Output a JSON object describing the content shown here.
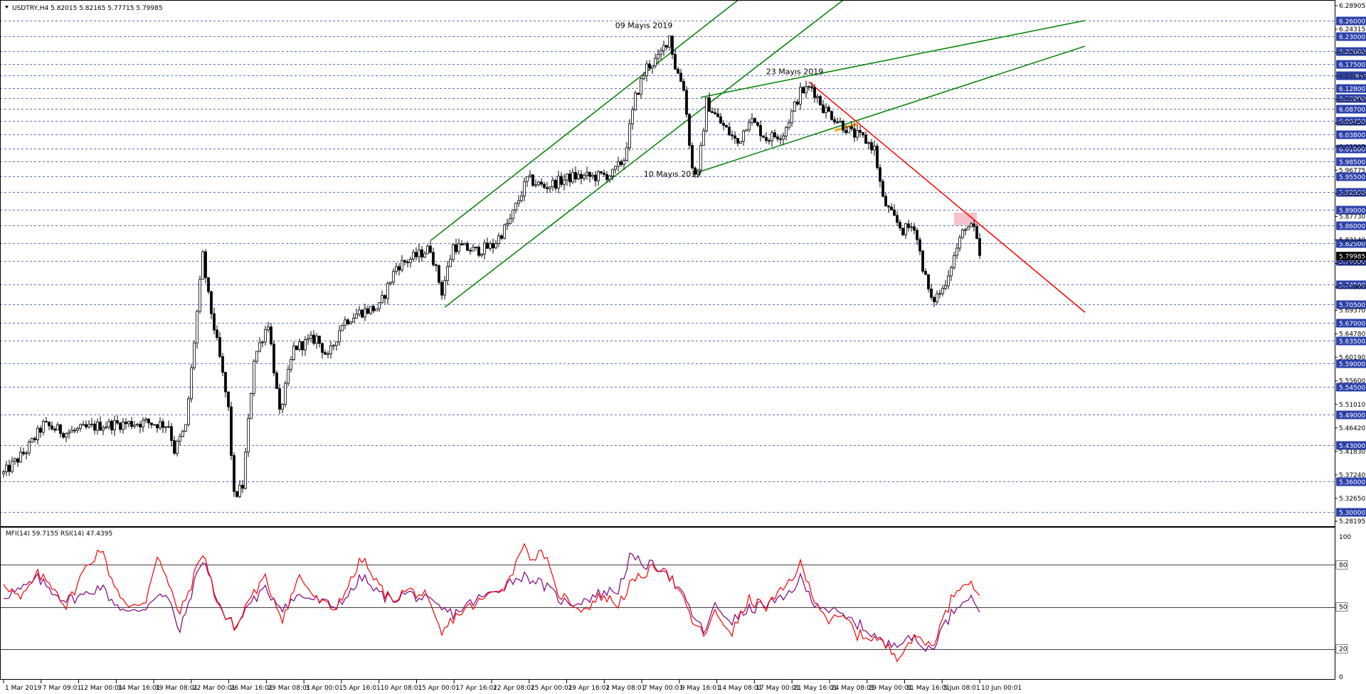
{
  "window": {
    "header": "USDTRY,H4  5.82015 5.82165 5.77715 5.79985",
    "indicator_header": "MFI(14) 59.7155  RSI(14) 47.4395"
  },
  "colors": {
    "background": "#ffffff",
    "grid": "#2b3fa8",
    "candle": "#000000",
    "channel": "#008000",
    "downtrend": "#ff0000",
    "highlight_box": "#f4b4c0",
    "price_label_bg": "#2b3fa8",
    "current_price_bg": "#000000",
    "rsi": "#ff0000",
    "mfi": "#800080",
    "orange_mark": "#ffa500"
  },
  "chart_data": [
    {
      "type": "candlestick",
      "title": "USDTRY,H4",
      "symbol": "USDTRY",
      "timeframe": "H4",
      "ohlc_last": {
        "open": 5.82015,
        "high": 5.82165,
        "low": 5.77715,
        "close": 5.79985
      },
      "ylim": [
        5.28195,
        6.28905
      ],
      "y_axis_ticks": [
        "6.28905",
        "6.24315",
        "6.19725",
        "6.15135",
        "6.10545",
        "6.05955",
        "6.01365",
        "5.96775",
        "5.92185",
        "5.87730",
        "5.83140",
        "5.78550",
        "5.73960",
        "5.69370",
        "5.64780",
        "5.60190",
        "5.55600",
        "5.51010",
        "5.46420",
        "5.41830",
        "5.37240",
        "5.32650",
        "5.28195"
      ],
      "price_levels": [
        "6.26000",
        "6.23000",
        "6.20000",
        "6.17500",
        "6.15300",
        "6.12800",
        "6.10800",
        "6.08700",
        "6.06450",
        "6.03800",
        "6.01000",
        "5.98500",
        "5.95500",
        "5.92500",
        "5.89000",
        "5.86000",
        "5.82500",
        "5.79000",
        "5.74500",
        "5.70500",
        "5.67000",
        "5.63500",
        "5.59000",
        "5.54500",
        "5.49000",
        "5.43000",
        "5.36000",
        "5.30000"
      ],
      "current_price_label": "5.79985",
      "x_axis_ticks": [
        "1 Mar 2019",
        "7 Mar 09:01",
        "12 Mar 00:01",
        "14 Mar 16:01",
        "19 Mar 08:01",
        "22 Mar 00:01",
        "26 Mar 16:01",
        "29 Mar 08:01",
        "3 Apr 00:01",
        "5 Apr 16:01",
        "10 Apr 08:01",
        "15 Apr 00:01",
        "17 Apr 16:01",
        "22 Apr 08:01",
        "25 Apr 00:01",
        "29 Apr 16:01",
        "2 May 08:01",
        "7 May 00:01",
        "9 May 16:01",
        "14 May 08:01",
        "17 May 00:01",
        "21 May 16:01",
        "24 May 08:01",
        "29 May 00:01",
        "31 May 16:01",
        "5 Jun 08:01",
        "10 Jun 00:01"
      ],
      "anchors": [
        {
          "t": 0,
          "p": 5.375
        },
        {
          "t": 8,
          "p": 5.42
        },
        {
          "t": 14,
          "p": 5.47
        },
        {
          "t": 22,
          "p": 5.455
        },
        {
          "t": 35,
          "p": 5.47
        },
        {
          "t": 50,
          "p": 5.475
        },
        {
          "t": 58,
          "p": 5.47
        },
        {
          "t": 60,
          "p": 5.42
        },
        {
          "t": 64,
          "p": 5.465
        },
        {
          "t": 68,
          "p": 5.69
        },
        {
          "t": 70,
          "p": 5.8
        },
        {
          "t": 72,
          "p": 5.72
        },
        {
          "t": 76,
          "p": 5.6
        },
        {
          "t": 79,
          "p": 5.5
        },
        {
          "t": 81,
          "p": 5.33
        },
        {
          "t": 84,
          "p": 5.35
        },
        {
          "t": 88,
          "p": 5.6
        },
        {
          "t": 93,
          "p": 5.67
        },
        {
          "t": 97,
          "p": 5.49
        },
        {
          "t": 102,
          "p": 5.62
        },
        {
          "t": 110,
          "p": 5.64
        },
        {
          "t": 114,
          "p": 5.6
        },
        {
          "t": 119,
          "p": 5.67
        },
        {
          "t": 125,
          "p": 5.69
        },
        {
          "t": 132,
          "p": 5.7
        },
        {
          "t": 138,
          "p": 5.78
        },
        {
          "t": 145,
          "p": 5.8
        },
        {
          "t": 150,
          "p": 5.815
        },
        {
          "t": 154,
          "p": 5.73
        },
        {
          "t": 158,
          "p": 5.82
        },
        {
          "t": 166,
          "p": 5.81
        },
        {
          "t": 172,
          "p": 5.82
        },
        {
          "t": 178,
          "p": 5.87
        },
        {
          "t": 184,
          "p": 5.95
        },
        {
          "t": 190,
          "p": 5.935
        },
        {
          "t": 200,
          "p": 5.955
        },
        {
          "t": 208,
          "p": 5.955
        },
        {
          "t": 214,
          "p": 5.96
        },
        {
          "t": 218,
          "p": 5.99
        },
        {
          "t": 222,
          "p": 6.11
        },
        {
          "t": 226,
          "p": 6.17
        },
        {
          "t": 230,
          "p": 6.185
        },
        {
          "t": 234,
          "p": 6.23
        },
        {
          "t": 236,
          "p": 6.17
        },
        {
          "t": 239,
          "p": 6.13
        },
        {
          "t": 242,
          "p": 5.97
        },
        {
          "t": 244,
          "p": 5.96
        },
        {
          "t": 247,
          "p": 6.1
        },
        {
          "t": 252,
          "p": 6.06
        },
        {
          "t": 258,
          "p": 6.02
        },
        {
          "t": 262,
          "p": 6.07
        },
        {
          "t": 268,
          "p": 6.03
        },
        {
          "t": 274,
          "p": 6.04
        },
        {
          "t": 280,
          "p": 6.12
        },
        {
          "t": 284,
          "p": 6.13
        },
        {
          "t": 288,
          "p": 6.09
        },
        {
          "t": 294,
          "p": 6.06
        },
        {
          "t": 298,
          "p": 6.04
        },
        {
          "t": 302,
          "p": 6.03
        },
        {
          "t": 306,
          "p": 6.01
        },
        {
          "t": 309,
          "p": 5.91
        },
        {
          "t": 312,
          "p": 5.88
        },
        {
          "t": 316,
          "p": 5.85
        },
        {
          "t": 320,
          "p": 5.86
        },
        {
          "t": 323,
          "p": 5.78
        },
        {
          "t": 326,
          "p": 5.71
        },
        {
          "t": 330,
          "p": 5.735
        },
        {
          "t": 334,
          "p": 5.8
        },
        {
          "t": 338,
          "p": 5.86
        },
        {
          "t": 341,
          "p": 5.85
        },
        {
          "t": 343,
          "p": 5.8
        }
      ],
      "overlays": {
        "upper_channel": [
          {
            "t": 150,
            "p": 5.83
          },
          {
            "t": 265,
            "p": 6.33
          }
        ],
        "lower_channel": [
          {
            "t": 155,
            "p": 5.7
          },
          {
            "t": 295,
            "p": 6.3
          }
        ],
        "wedge_upper": [
          {
            "t": 245,
            "p": 6.11
          },
          {
            "t": 380,
            "p": 6.26
          }
        ],
        "wedge_lower": [
          {
            "t": 242,
            "p": 5.96
          },
          {
            "t": 380,
            "p": 6.21
          }
        ],
        "downtrend": [
          {
            "t": 283,
            "p": 6.14
          },
          {
            "t": 380,
            "p": 5.69
          }
        ],
        "resistance_box": {
          "t_start": 334,
          "t_end": 342,
          "p_low": 5.86,
          "p_high": 5.885
        }
      },
      "annotations": [
        {
          "text": "09 Mayıs 2019",
          "t": 225,
          "p": 6.245
        },
        {
          "text": "23 Mayıs 2019",
          "t": 278,
          "p": 6.155
        },
        {
          "text": "10 Mayıs 2019",
          "t": 235,
          "p": 5.955
        }
      ]
    },
    {
      "type": "line",
      "title": "MFI(14) 59.7155  RSI(14) 47.4395",
      "series": [
        {
          "name": "MFI(14)",
          "last_value": 59.7155
        },
        {
          "name": "RSI(14)",
          "last_value": 47.4395
        }
      ],
      "ylim": [
        0,
        100
      ],
      "y_axis_ticks": [
        "100",
        "80",
        "50",
        "20",
        "0"
      ],
      "levels": [
        80,
        50,
        20
      ],
      "rsi_anchors": [
        {
          "t": 0,
          "v": 68
        },
        {
          "t": 6,
          "v": 55
        },
        {
          "t": 12,
          "v": 73
        },
        {
          "t": 18,
          "v": 64
        },
        {
          "t": 22,
          "v": 50
        },
        {
          "t": 28,
          "v": 75
        },
        {
          "t": 34,
          "v": 92
        },
        {
          "t": 38,
          "v": 70
        },
        {
          "t": 44,
          "v": 48
        },
        {
          "t": 50,
          "v": 55
        },
        {
          "t": 54,
          "v": 88
        },
        {
          "t": 58,
          "v": 65
        },
        {
          "t": 62,
          "v": 45
        },
        {
          "t": 66,
          "v": 66
        },
        {
          "t": 70,
          "v": 90
        },
        {
          "t": 74,
          "v": 60
        },
        {
          "t": 78,
          "v": 42
        },
        {
          "t": 82,
          "v": 35
        },
        {
          "t": 86,
          "v": 55
        },
        {
          "t": 92,
          "v": 70
        },
        {
          "t": 98,
          "v": 42
        },
        {
          "t": 104,
          "v": 72
        },
        {
          "t": 110,
          "v": 55
        },
        {
          "t": 116,
          "v": 48
        },
        {
          "t": 122,
          "v": 68
        },
        {
          "t": 126,
          "v": 85
        },
        {
          "t": 130,
          "v": 70
        },
        {
          "t": 136,
          "v": 55
        },
        {
          "t": 142,
          "v": 62
        },
        {
          "t": 148,
          "v": 58
        },
        {
          "t": 154,
          "v": 30
        },
        {
          "t": 158,
          "v": 42
        },
        {
          "t": 162,
          "v": 48
        },
        {
          "t": 166,
          "v": 52
        },
        {
          "t": 172,
          "v": 60
        },
        {
          "t": 178,
          "v": 70
        },
        {
          "t": 182,
          "v": 94
        },
        {
          "t": 186,
          "v": 85
        },
        {
          "t": 190,
          "v": 88
        },
        {
          "t": 194,
          "v": 62
        },
        {
          "t": 198,
          "v": 55
        },
        {
          "t": 204,
          "v": 48
        },
        {
          "t": 210,
          "v": 58
        },
        {
          "t": 216,
          "v": 52
        },
        {
          "t": 220,
          "v": 65
        },
        {
          "t": 226,
          "v": 75
        },
        {
          "t": 232,
          "v": 80
        },
        {
          "t": 238,
          "v": 58
        },
        {
          "t": 242,
          "v": 40
        },
        {
          "t": 246,
          "v": 30
        },
        {
          "t": 250,
          "v": 45
        },
        {
          "t": 256,
          "v": 32
        },
        {
          "t": 262,
          "v": 55
        },
        {
          "t": 268,
          "v": 50
        },
        {
          "t": 274,
          "v": 62
        },
        {
          "t": 280,
          "v": 80
        },
        {
          "t": 284,
          "v": 60
        },
        {
          "t": 290,
          "v": 40
        },
        {
          "t": 296,
          "v": 42
        },
        {
          "t": 300,
          "v": 30
        },
        {
          "t": 306,
          "v": 28
        },
        {
          "t": 310,
          "v": 22
        },
        {
          "t": 314,
          "v": 15
        },
        {
          "t": 318,
          "v": 25
        },
        {
          "t": 322,
          "v": 28
        },
        {
          "t": 326,
          "v": 22
        },
        {
          "t": 330,
          "v": 40
        },
        {
          "t": 334,
          "v": 60
        },
        {
          "t": 338,
          "v": 70
        },
        {
          "t": 341,
          "v": 64
        },
        {
          "t": 343,
          "v": 60
        }
      ],
      "mfi_anchors": [
        {
          "t": 0,
          "v": 58
        },
        {
          "t": 6,
          "v": 62
        },
        {
          "t": 12,
          "v": 70
        },
        {
          "t": 18,
          "v": 60
        },
        {
          "t": 22,
          "v": 55
        },
        {
          "t": 28,
          "v": 58
        },
        {
          "t": 34,
          "v": 65
        },
        {
          "t": 38,
          "v": 55
        },
        {
          "t": 44,
          "v": 45
        },
        {
          "t": 50,
          "v": 50
        },
        {
          "t": 54,
          "v": 60
        },
        {
          "t": 58,
          "v": 55
        },
        {
          "t": 62,
          "v": 32
        },
        {
          "t": 66,
          "v": 60
        },
        {
          "t": 70,
          "v": 85
        },
        {
          "t": 74,
          "v": 62
        },
        {
          "t": 78,
          "v": 42
        },
        {
          "t": 82,
          "v": 36
        },
        {
          "t": 86,
          "v": 52
        },
        {
          "t": 92,
          "v": 62
        },
        {
          "t": 98,
          "v": 50
        },
        {
          "t": 104,
          "v": 58
        },
        {
          "t": 110,
          "v": 55
        },
        {
          "t": 116,
          "v": 50
        },
        {
          "t": 122,
          "v": 60
        },
        {
          "t": 126,
          "v": 72
        },
        {
          "t": 130,
          "v": 62
        },
        {
          "t": 136,
          "v": 55
        },
        {
          "t": 142,
          "v": 60
        },
        {
          "t": 148,
          "v": 55
        },
        {
          "t": 154,
          "v": 48
        },
        {
          "t": 158,
          "v": 45
        },
        {
          "t": 162,
          "v": 50
        },
        {
          "t": 166,
          "v": 55
        },
        {
          "t": 172,
          "v": 60
        },
        {
          "t": 178,
          "v": 68
        },
        {
          "t": 182,
          "v": 72
        },
        {
          "t": 186,
          "v": 70
        },
        {
          "t": 190,
          "v": 65
        },
        {
          "t": 194,
          "v": 58
        },
        {
          "t": 198,
          "v": 52
        },
        {
          "t": 204,
          "v": 55
        },
        {
          "t": 210,
          "v": 60
        },
        {
          "t": 216,
          "v": 62
        },
        {
          "t": 220,
          "v": 85
        },
        {
          "t": 226,
          "v": 80
        },
        {
          "t": 232,
          "v": 78
        },
        {
          "t": 238,
          "v": 60
        },
        {
          "t": 242,
          "v": 45
        },
        {
          "t": 246,
          "v": 32
        },
        {
          "t": 250,
          "v": 50
        },
        {
          "t": 256,
          "v": 40
        },
        {
          "t": 262,
          "v": 48
        },
        {
          "t": 268,
          "v": 52
        },
        {
          "t": 274,
          "v": 55
        },
        {
          "t": 280,
          "v": 70
        },
        {
          "t": 284,
          "v": 55
        },
        {
          "t": 290,
          "v": 48
        },
        {
          "t": 296,
          "v": 42
        },
        {
          "t": 300,
          "v": 38
        },
        {
          "t": 306,
          "v": 30
        },
        {
          "t": 310,
          "v": 22
        },
        {
          "t": 314,
          "v": 25
        },
        {
          "t": 318,
          "v": 30
        },
        {
          "t": 322,
          "v": 22
        },
        {
          "t": 326,
          "v": 20
        },
        {
          "t": 330,
          "v": 35
        },
        {
          "t": 334,
          "v": 48
        },
        {
          "t": 338,
          "v": 58
        },
        {
          "t": 341,
          "v": 55
        },
        {
          "t": 343,
          "v": 48
        }
      ]
    }
  ]
}
